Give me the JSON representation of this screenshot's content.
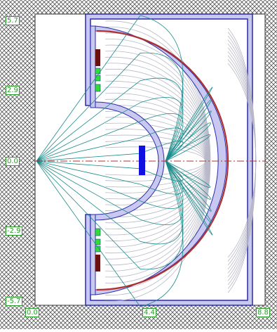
{
  "axes": {
    "y_ticks": [
      "5.7",
      "2.9",
      "0.0",
      "-2.9",
      "-5.7"
    ],
    "x_ticks": [
      "0.0",
      "4.4",
      "8.8"
    ]
  },
  "colors": {
    "hatch": "#555555",
    "frame_fill": "#c8c8f0",
    "frame_stroke": "#2a2aa8",
    "mirror_red": "#b03030",
    "ray_teal": "#1a8a8a",
    "field_gray": "#b8b8c8",
    "axis_dashdot": "#b03030",
    "block_blue": "#1010e0",
    "magnet_green": "#30e030",
    "magnet_brown": "#6a1010"
  }
}
